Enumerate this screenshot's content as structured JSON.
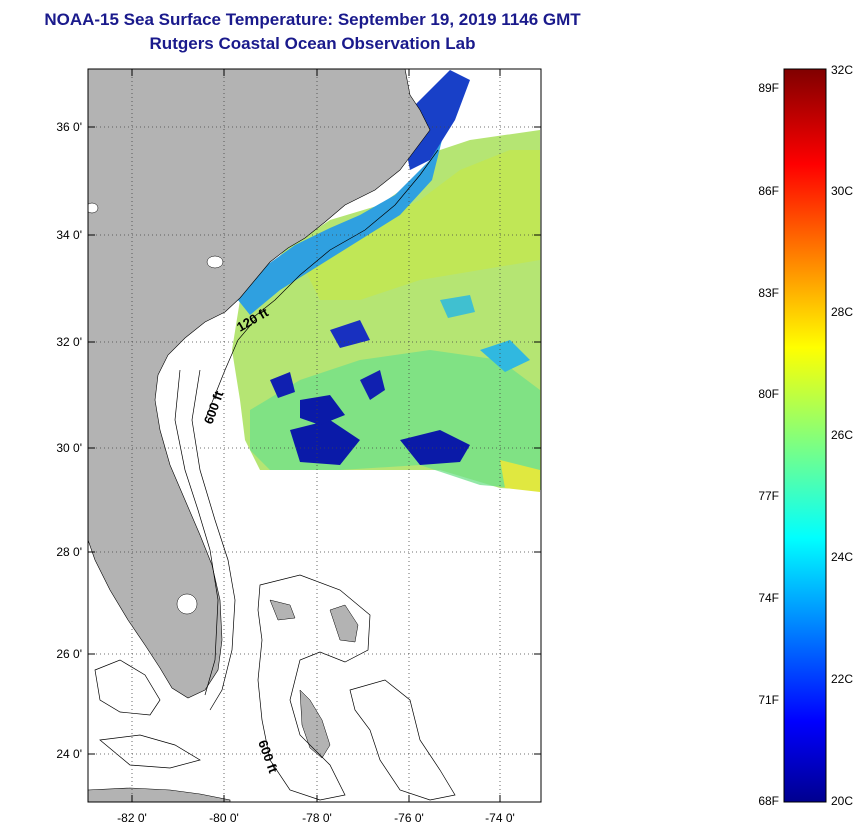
{
  "title": {
    "line1": "NOAA-15 Sea Surface Temperature:  September 19, 2019 1146 GMT",
    "line2": "Rutgers Coastal Ocean Observation Lab"
  },
  "map": {
    "lat_labels": [
      "36 0'",
      "34 0'",
      "32 0'",
      "30 0'",
      "28 0'",
      "26 0'",
      "24 0'"
    ],
    "lon_labels": [
      "-82 0'",
      "-80 0'",
      "-78 0'",
      "-76 0'",
      "-74 0'"
    ],
    "contours": {
      "c120": "120 ft",
      "c600a": "600 ft",
      "c600b": "600 ft"
    },
    "colors": {
      "land": "#b3b3b3",
      "grid": "#444444"
    }
  },
  "colorbar": {
    "fahrenheit": [
      "89F",
      "86F",
      "83F",
      "80F",
      "77F",
      "74F",
      "71F",
      "68F"
    ],
    "celsius": [
      "32C",
      "30C",
      "28C",
      "26C",
      "24C",
      "22C",
      "20C"
    ],
    "range_c": [
      20,
      32
    ]
  }
}
